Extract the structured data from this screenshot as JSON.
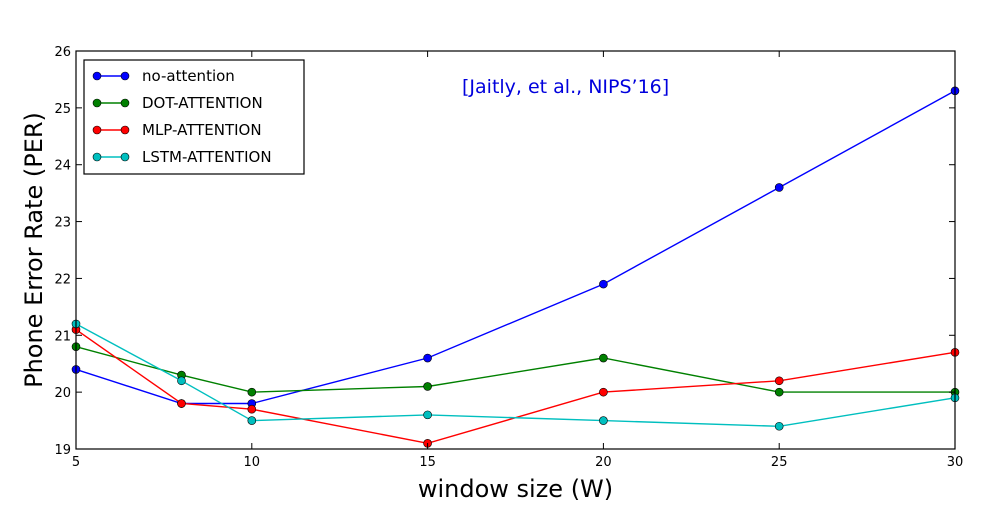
{
  "chart_data": {
    "type": "line",
    "title": "",
    "xlabel": "window size (W)",
    "ylabel": "Phone Error Rate (PER)",
    "x": [
      5,
      8,
      10,
      15,
      20,
      25,
      30
    ],
    "xticks": [
      5,
      10,
      15,
      20,
      25,
      30
    ],
    "yticks": [
      19,
      20,
      21,
      22,
      23,
      24,
      25,
      26
    ],
    "xlim": [
      5,
      30
    ],
    "ylim": [
      19,
      26
    ],
    "grid": false,
    "legend_position": "top-left",
    "annotation": {
      "text": "[Jaitly, et al., NIPS’16]",
      "color": "#0000dd"
    },
    "series": [
      {
        "name": "no-attention",
        "color": "#0000ff",
        "values": [
          20.4,
          19.8,
          19.8,
          20.6,
          21.9,
          23.6,
          25.3
        ]
      },
      {
        "name": "DOT-ATTENTION",
        "color": "#008000",
        "values": [
          20.8,
          20.3,
          20.0,
          20.1,
          20.6,
          20.0,
          20.0
        ]
      },
      {
        "name": "MLP-ATTENTION",
        "color": "#ff0000",
        "values": [
          21.1,
          19.8,
          19.7,
          19.1,
          20.0,
          20.2,
          20.7
        ]
      },
      {
        "name": "LSTM-ATTENTION",
        "color": "#00bfbf",
        "values": [
          21.2,
          20.2,
          19.5,
          19.6,
          19.5,
          19.4,
          19.9
        ]
      }
    ]
  }
}
